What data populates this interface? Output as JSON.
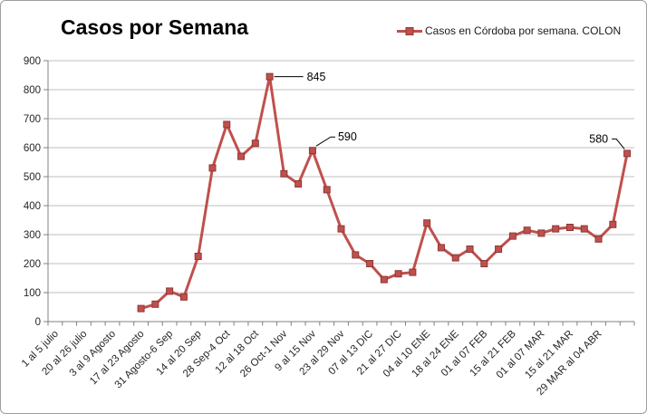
{
  "chart_data": {
    "type": "line",
    "title": "Casos por Semana",
    "legend": "Casos en Córdoba por semana. COLON",
    "series": [
      {
        "name": "Casos en Córdoba por semana. COLON",
        "start_category": 7,
        "values": [
          45,
          60,
          105,
          85,
          225,
          530,
          680,
          570,
          615,
          845,
          510,
          475,
          590,
          455,
          320,
          230,
          200,
          145,
          165,
          170,
          340,
          255,
          220,
          250,
          200,
          250,
          295,
          315,
          305,
          320,
          325,
          320,
          285,
          335,
          580
        ]
      }
    ],
    "categories_total": 41,
    "x_tick_labels": [
      "1 al 5 julio",
      "20 al 26 julio",
      "3 al 9 Agosto",
      "17 al 23 Agosto",
      "31 Agosto-6 Sep",
      "14 al 20 Sep",
      "28 Sep-4 Oct",
      "12 al 18 Oct",
      "26 Oct-1 Nov",
      "9 al 15 Nov",
      "23 al 29 Nov",
      "07 al 13 DIC",
      "21 al 27 DIC",
      "04 al 10 ENE",
      "18 al 24 ENE",
      "01 al 07 FEB",
      "15 al 21 FEB",
      "01 al 07 MAR",
      "15 al 21 MAR",
      "29 MAR al 04 ABR"
    ],
    "x_label_every": 2,
    "ylim": [
      0,
      900
    ],
    "ytick_step": 100,
    "grid": "horizontal",
    "legend_position": "top-right",
    "annotations": [
      {
        "text": "845",
        "point_index": 9,
        "placement": "right"
      },
      {
        "text": "590",
        "point_index": 12,
        "placement": "upper-right"
      },
      {
        "text": "580",
        "point_index": 34,
        "placement": "upper-left"
      }
    ],
    "colors": {
      "series": "#C0504D",
      "marker_border": "#8C3836",
      "grid": "#BFBFBF",
      "axis": "#808080",
      "axis_text": "#262626",
      "annotation_text": "#000000",
      "title_text": "#000000",
      "background": "#FFFFFF"
    }
  }
}
